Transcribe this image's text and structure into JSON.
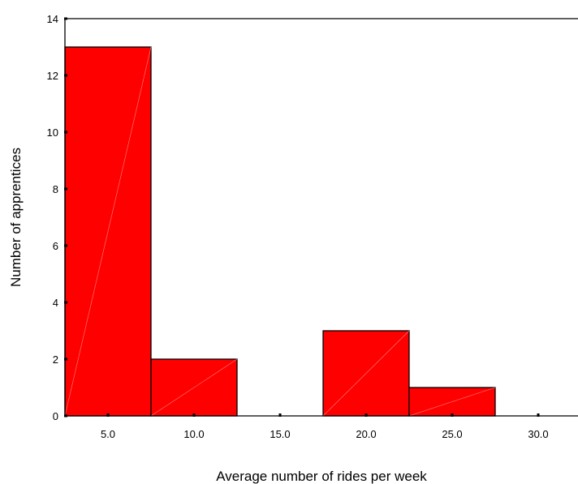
{
  "chart_data": {
    "type": "bar",
    "xlabel": "Average number of rides per week",
    "ylabel": "Number of apprentices",
    "categories": [
      "5.0",
      "10.0",
      "15.0",
      "20.0",
      "25.0",
      "30.0"
    ],
    "values": [
      13,
      2,
      0,
      3,
      1,
      0
    ],
    "bin_width": 5,
    "ylim": [
      0,
      14
    ],
    "yticks": [
      "0",
      "2",
      "4",
      "6",
      "8",
      "10",
      "12",
      "14"
    ],
    "xlim": [
      2.5,
      32.5
    ],
    "bar_color": "#ff0000",
    "grid": false,
    "legend": "none"
  }
}
